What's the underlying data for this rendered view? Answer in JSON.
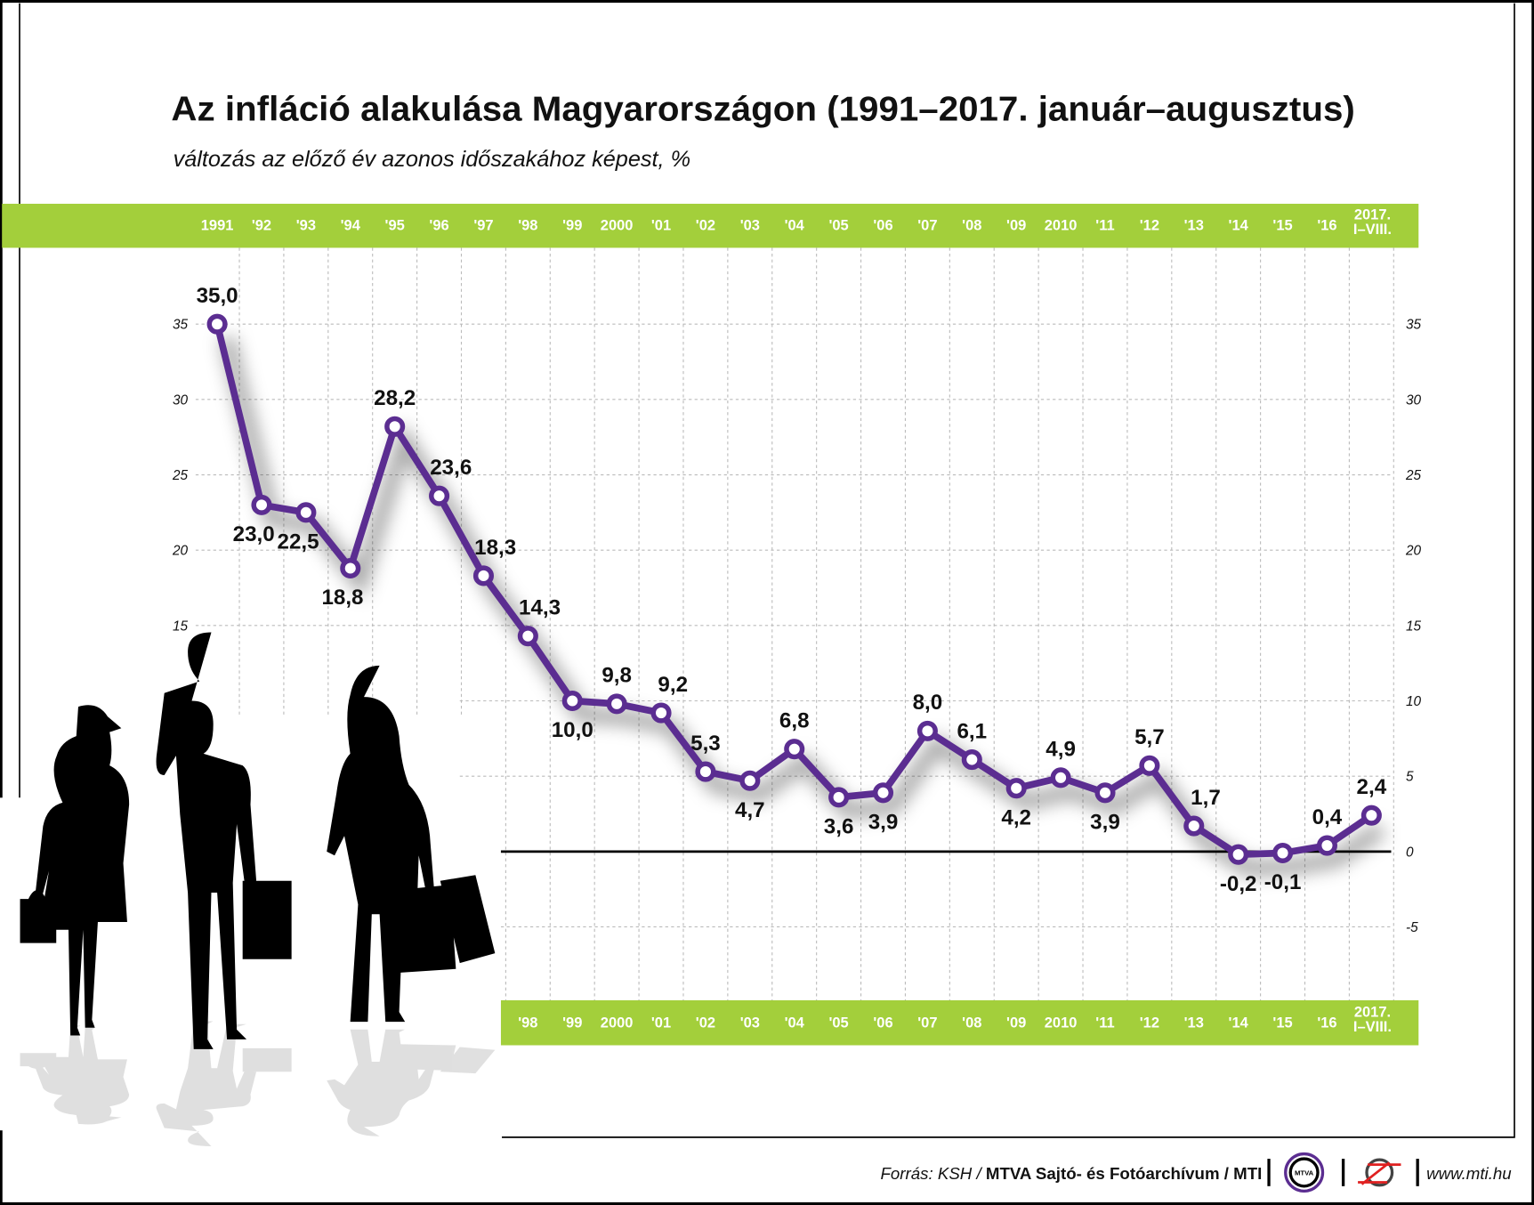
{
  "chart_data": {
    "type": "line",
    "title": "Az infláció alakulása Magyarországon (1991–2017. január–augusztus)",
    "subtitle": "változás az előző év azonos időszakához képest, %",
    "categories": [
      "1991",
      "'92",
      "'93",
      "'94",
      "'95",
      "'96",
      "'97",
      "'98",
      "'99",
      "2000",
      "'01",
      "'02",
      "'03",
      "'04",
      "'05",
      "'06",
      "'07",
      "'08",
      "'09",
      "2010",
      "'11",
      "'12",
      "'13",
      "'14",
      "'15",
      "'16",
      "2017. I–VIII."
    ],
    "values": [
      35.0,
      23.0,
      22.5,
      18.8,
      28.2,
      23.6,
      18.3,
      14.3,
      10.0,
      9.8,
      9.2,
      5.3,
      4.7,
      6.8,
      3.6,
      3.9,
      8.0,
      6.1,
      4.2,
      4.9,
      3.9,
      5.7,
      1.7,
      -0.2,
      -0.1,
      0.4,
      2.4
    ],
    "data_labels": [
      "35,0",
      "23,0",
      "22,5",
      "18,8",
      "28,2",
      "23,6",
      "18,3",
      "14,3",
      "10,0",
      "9,8",
      "9,2",
      "5,3",
      "4,7",
      "6,8",
      "3,6",
      "3,9",
      "8,0",
      "6,1",
      "4,2",
      "4,9",
      "3,9",
      "5,7",
      "1,7",
      "-0,2",
      "-0,1",
      "0,4",
      "2,4"
    ],
    "bottom_band_start_index": 6,
    "yticks": [
      35,
      30,
      25,
      20,
      15,
      10,
      5,
      0,
      -5
    ],
    "ytick_labels": [
      "35",
      "30",
      "25",
      "20",
      "15",
      "10",
      "5",
      "0",
      "-5"
    ],
    "left_axis_ticks_visible_from": 15,
    "ylim": [
      -8,
      37
    ],
    "grid": true,
    "xlabel": "",
    "ylabel": "",
    "colors": {
      "line": "#5b2d91",
      "band": "#a3cf3b",
      "marker_fill": "#ffffff"
    }
  },
  "footer": {
    "source_prefix": "Forrás: KSH / ",
    "source_bold": "MTVA Sajtó- és Fotóarchívum / MTI",
    "mtva_logo_text": "MTVA",
    "url": "www.mti.hu"
  }
}
